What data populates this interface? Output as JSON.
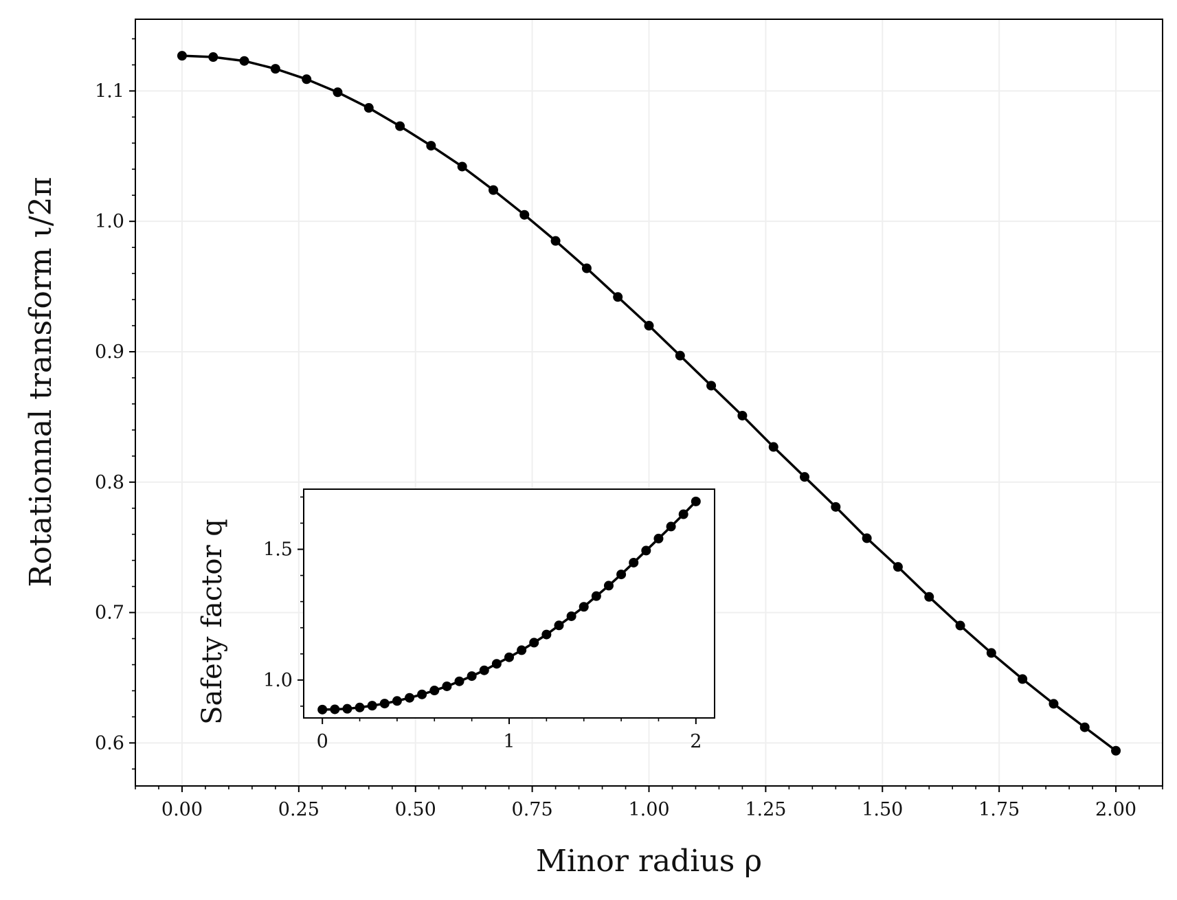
{
  "chart_data": [
    {
      "type": "line",
      "title": "",
      "xlabel": "Minor radius ρ",
      "ylabel": "Rotationnal transform ι/2π",
      "xlim": [
        -0.1,
        2.1
      ],
      "ylim": [
        0.567,
        1.155
      ],
      "xticks": [
        0.0,
        0.25,
        0.5,
        0.75,
        1.0,
        1.25,
        1.5,
        1.75,
        2.0
      ],
      "xtick_labels": [
        "0.00",
        "0.25",
        "0.50",
        "0.75",
        "1.00",
        "1.25",
        "1.50",
        "1.75",
        "2.00"
      ],
      "yticks": [
        0.6,
        0.7,
        0.8,
        0.9,
        1.0,
        1.1
      ],
      "ytick_labels": [
        "0.6",
        "0.7",
        "0.8",
        "0.9",
        "1.0",
        "1.1"
      ],
      "grid": true,
      "color": "#000000",
      "marker": "circle",
      "x": [
        0.0,
        0.0667,
        0.1333,
        0.2,
        0.2667,
        0.3333,
        0.4,
        0.4667,
        0.5333,
        0.6,
        0.6667,
        0.7333,
        0.8,
        0.8667,
        0.9333,
        1.0,
        1.0667,
        1.1333,
        1.2,
        1.2667,
        1.3333,
        1.4,
        1.4667,
        1.5333,
        1.6,
        1.6667,
        1.7333,
        1.8,
        1.8667,
        1.9333,
        2.0
      ],
      "y": [
        1.127,
        1.126,
        1.123,
        1.117,
        1.109,
        1.099,
        1.087,
        1.073,
        1.058,
        1.042,
        1.024,
        1.005,
        0.985,
        0.964,
        0.942,
        0.92,
        0.897,
        0.874,
        0.851,
        0.827,
        0.804,
        0.781,
        0.757,
        0.735,
        0.712,
        0.69,
        0.669,
        0.649,
        0.63,
        0.612,
        0.594
      ]
    },
    {
      "type": "line",
      "title": "",
      "xlabel": "",
      "ylabel": "Safety factor q",
      "xlim": [
        -0.1,
        2.1
      ],
      "ylim": [
        0.855,
        1.73
      ],
      "xticks": [
        0,
        1,
        2
      ],
      "xtick_labels": [
        "0",
        "1",
        "2"
      ],
      "yticks": [
        1.0,
        1.5
      ],
      "ytick_labels": [
        "1.0",
        "1.5"
      ],
      "grid": false,
      "color": "#000000",
      "marker": "circle",
      "x": [
        0.0,
        0.0667,
        0.1333,
        0.2,
        0.2667,
        0.3333,
        0.4,
        0.4667,
        0.5333,
        0.6,
        0.6667,
        0.7333,
        0.8,
        0.8667,
        0.9333,
        1.0,
        1.0667,
        1.1333,
        1.2,
        1.2667,
        1.3333,
        1.4,
        1.4667,
        1.5333,
        1.6,
        1.6667,
        1.7333,
        1.8,
        1.8667,
        1.9333,
        2.0
      ],
      "y": [
        0.887,
        0.888,
        0.89,
        0.895,
        0.902,
        0.91,
        0.92,
        0.932,
        0.945,
        0.96,
        0.976,
        0.995,
        1.015,
        1.037,
        1.062,
        1.087,
        1.114,
        1.143,
        1.174,
        1.209,
        1.244,
        1.28,
        1.321,
        1.361,
        1.404,
        1.449,
        1.495,
        1.541,
        1.587,
        1.634,
        1.683
      ]
    }
  ]
}
